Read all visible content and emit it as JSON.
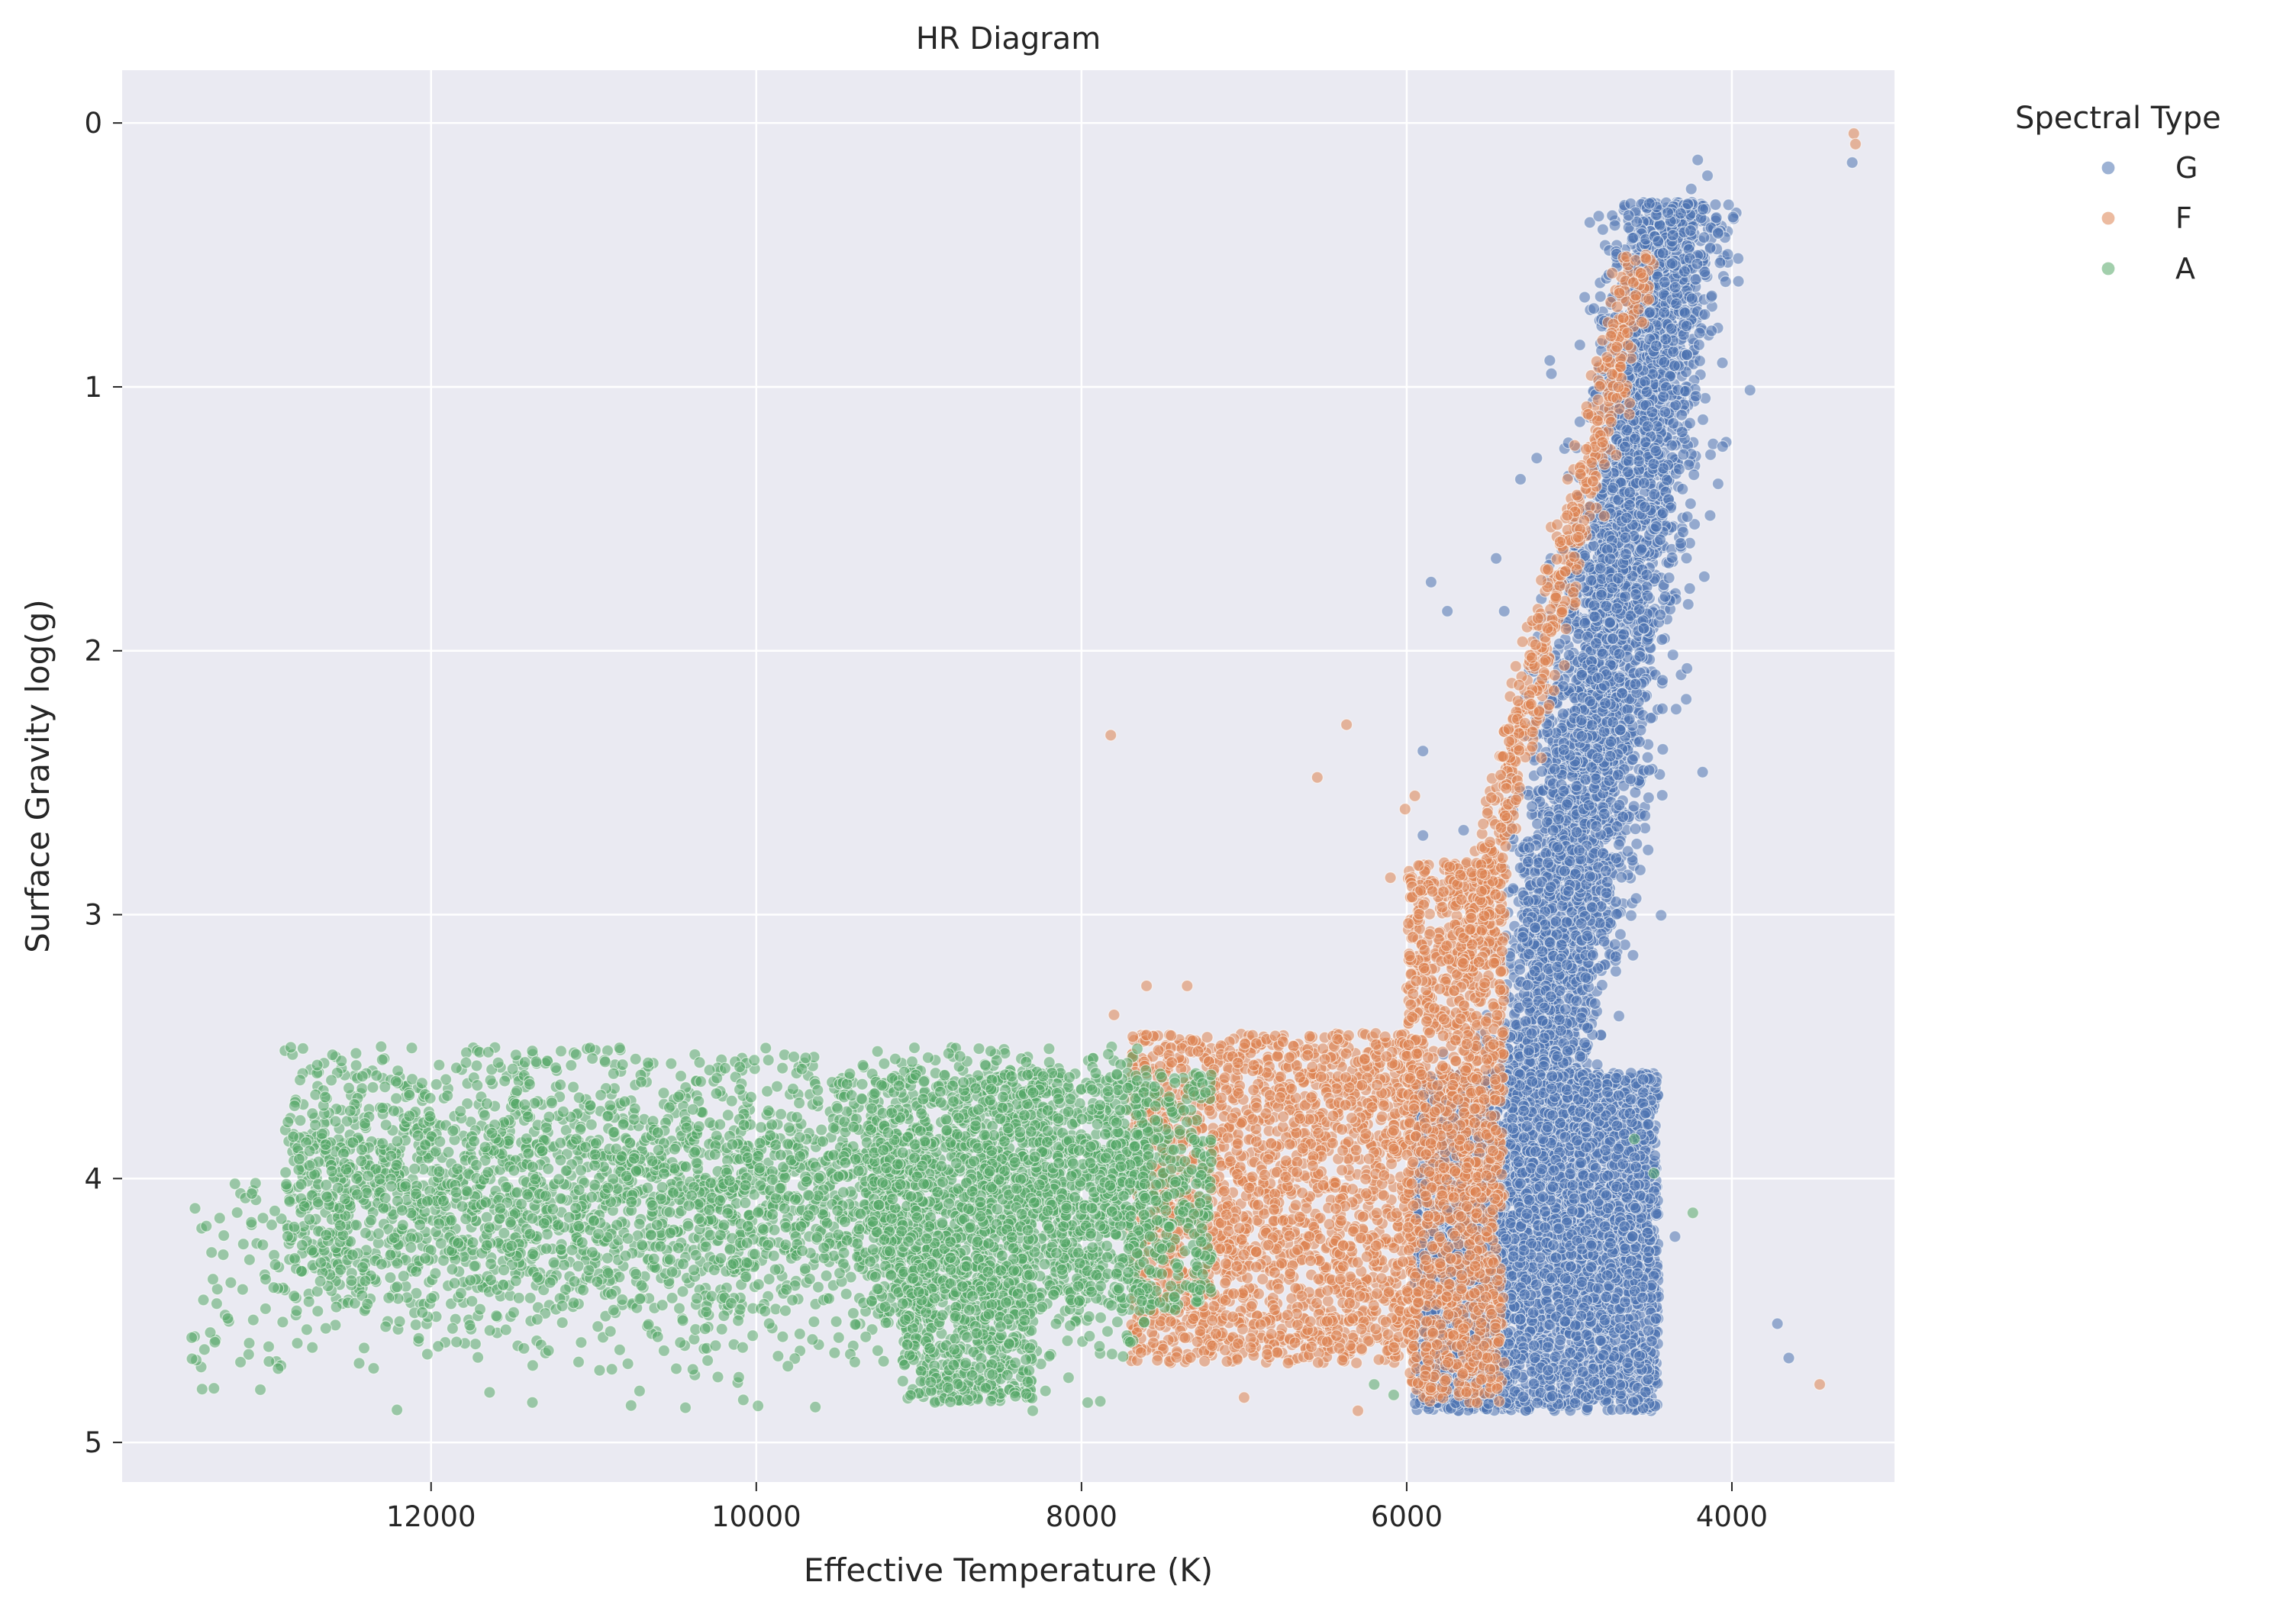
{
  "chart_data": {
    "type": "scatter",
    "title": "HR Diagram",
    "xlabel": "Effective Temperature (K)",
    "ylabel": "Surface Gravity log(g)",
    "x_inverted": true,
    "y_inverted": true,
    "xlim": [
      13900,
      3000
    ],
    "ylim": [
      -0.2,
      5.15
    ],
    "x_ticks": [
      12000,
      10000,
      8000,
      6000,
      4000
    ],
    "x_tick_labels": [
      "12000",
      "10000",
      "8000",
      "6000",
      "4000"
    ],
    "y_ticks": [
      0,
      1,
      2,
      3,
      4,
      5
    ],
    "y_tick_labels": [
      "0",
      "1",
      "2",
      "3",
      "4",
      "5"
    ],
    "grid": true,
    "legend": {
      "title": "Spectral Type",
      "placement": "outside-right"
    },
    "series": [
      {
        "name": "G",
        "color": "#4c72b0",
        "opacity": 0.55,
        "regions": [
          {
            "kind": "giant-branch",
            "count": 4200,
            "y_from": 0.3,
            "y_to": 3.7,
            "temp_at_y_from": 4350,
            "temp_at_y_to": 5200,
            "temp_spread": 330
          },
          {
            "kind": "main-sequence",
            "count": 4000,
            "x_range": [
              4450,
              5950
            ],
            "y_range": [
              3.6,
              4.88
            ]
          },
          {
            "kind": "lower-rgb",
            "count": 600,
            "x_range": [
              4500,
              5500
            ],
            "y_range": [
              3.6,
              4.3
            ]
          }
        ],
        "points": [
          [
            4210,
            0.14
          ],
          [
            4150,
            0.2
          ],
          [
            4250,
            0.25
          ],
          [
            3960,
            0.6
          ],
          [
            5120,
            0.9
          ],
          [
            5110,
            0.95
          ],
          [
            5450,
            1.65
          ],
          [
            5400,
            1.85
          ],
          [
            5750,
            1.85
          ],
          [
            5850,
            1.74
          ],
          [
            5900,
            2.38
          ],
          [
            5650,
            2.68
          ],
          [
            5900,
            2.7
          ],
          [
            5200,
            1.27
          ],
          [
            5300,
            1.35
          ],
          [
            3260,
            0.15
          ],
          [
            3720,
            4.55
          ],
          [
            3650,
            4.68
          ],
          [
            4180,
            2.46
          ],
          [
            4350,
            4.22
          ],
          [
            4580,
            4.36
          ]
        ]
      },
      {
        "name": "F",
        "color": "#dd8452",
        "opacity": 0.55,
        "regions": [
          {
            "kind": "subgiant",
            "count": 2000,
            "x_range": [
              5950,
              7700
            ],
            "y_range": [
              3.45,
              4.7
            ]
          },
          {
            "kind": "turnoff",
            "count": 1400,
            "x_range": [
              5400,
              6000
            ],
            "y_range": [
              2.8,
              4.85
            ]
          },
          {
            "kind": "giant-edge",
            "count": 600,
            "y_from": 0.5,
            "y_to": 3.2,
            "temp_at_y_from": 4550,
            "temp_at_y_to": 5650,
            "temp_spread": 120
          }
        ],
        "points": [
          [
            7820,
            2.32
          ],
          [
            6370,
            2.28
          ],
          [
            6550,
            2.48
          ],
          [
            7600,
            3.27
          ],
          [
            7350,
            3.27
          ],
          [
            3250,
            0.04
          ],
          [
            3240,
            0.08
          ],
          [
            3460,
            4.78
          ],
          [
            7800,
            3.38
          ],
          [
            5950,
            2.55
          ],
          [
            6100,
            2.86
          ],
          [
            7000,
            4.83
          ],
          [
            6300,
            4.88
          ],
          [
            5670,
            2.85
          ],
          [
            6010,
            2.6
          ]
        ]
      },
      {
        "name": "A",
        "color": "#55a868",
        "opacity": 0.55,
        "regions": [
          {
            "kind": "horizontal-band",
            "count": 3600,
            "x_range": [
              7600,
              12900
            ],
            "y_range": [
              3.5,
              4.88
            ]
          },
          {
            "kind": "dense-core",
            "count": 1300,
            "x_range": [
              7200,
              9300
            ],
            "y_range": [
              3.6,
              4.5
            ]
          },
          {
            "kind": "lower-blob",
            "count": 500,
            "x_range": [
              8300,
              9100
            ],
            "y_range": [
              4.3,
              4.85
            ]
          },
          {
            "kind": "hot-tail",
            "count": 60,
            "x_range": [
              12900,
              13500
            ],
            "y_range": [
              4.0,
              4.8
            ]
          }
        ],
        "points": [
          [
            13400,
            4.46
          ],
          [
            13350,
            4.28
          ],
          [
            13300,
            4.15
          ],
          [
            13250,
            4.53
          ],
          [
            13050,
            4.8
          ],
          [
            12700,
            3.57
          ],
          [
            12300,
            3.55
          ],
          [
            4600,
            3.85
          ],
          [
            4480,
            3.98
          ],
          [
            4240,
            4.13
          ],
          [
            6080,
            4.82
          ],
          [
            6200,
            4.78
          ],
          [
            7700,
            4.62
          ],
          [
            8300,
            4.88
          ]
        ]
      }
    ]
  }
}
